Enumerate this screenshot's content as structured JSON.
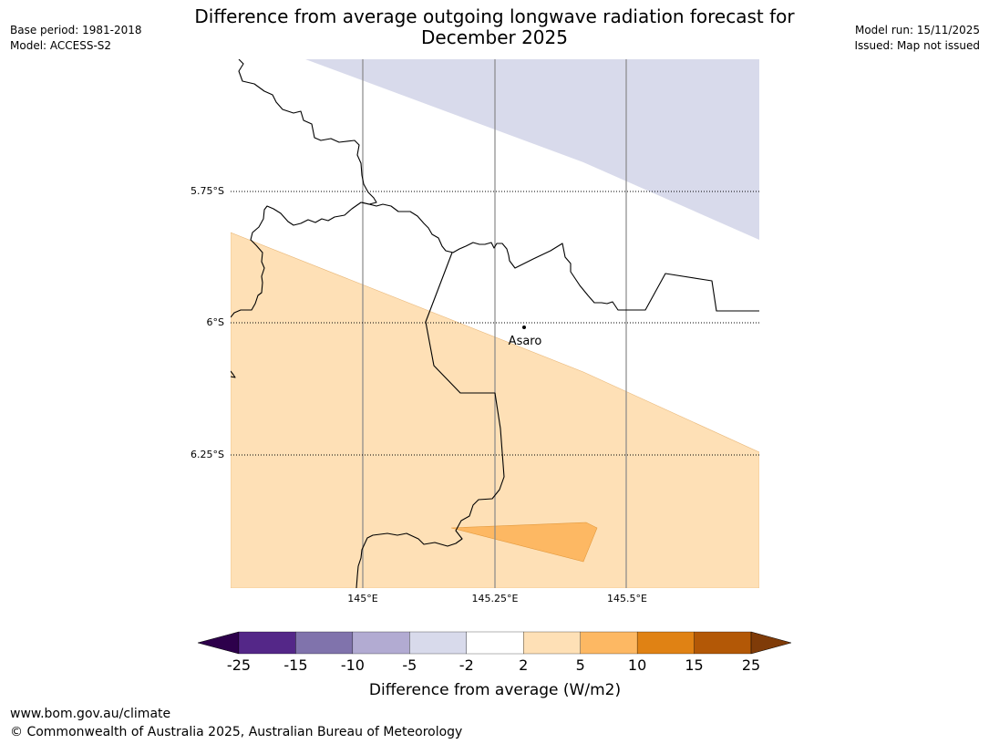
{
  "header": {
    "title_line1": "Difference from average outgoing longwave radiation forecast for",
    "title_line2": "December 2025",
    "base_period": "Base period: 1981-2018",
    "model": "Model: ACCESS-S2",
    "model_run": "Model run: 15/11/2025",
    "issued": "Issued: Map not issued"
  },
  "map": {
    "lat_labels": [
      "5.75°S",
      "6°S",
      "6.25°S"
    ],
    "lon_labels": [
      "145°E",
      "145.25°E",
      "145.5°E"
    ],
    "place": "Asaro"
  },
  "legend": {
    "title": "Difference from average (W/m2)",
    "ticks": [
      "-25",
      "-15",
      "-10",
      "-5",
      "-2",
      "2",
      "5",
      "10",
      "15",
      "25"
    ],
    "colors": [
      "#2d004b",
      "#542788",
      "#8073ac",
      "#b2abd2",
      "#d8daeb",
      "#ffffff",
      "#fee0b6",
      "#fdb863",
      "#e08214",
      "#b35806",
      "#7f3b08"
    ]
  },
  "footer": {
    "url": "www.bom.gov.au/climate",
    "copyright": "© Commonwealth of Australia 2025, Australian Bureau of Meteorology"
  }
}
